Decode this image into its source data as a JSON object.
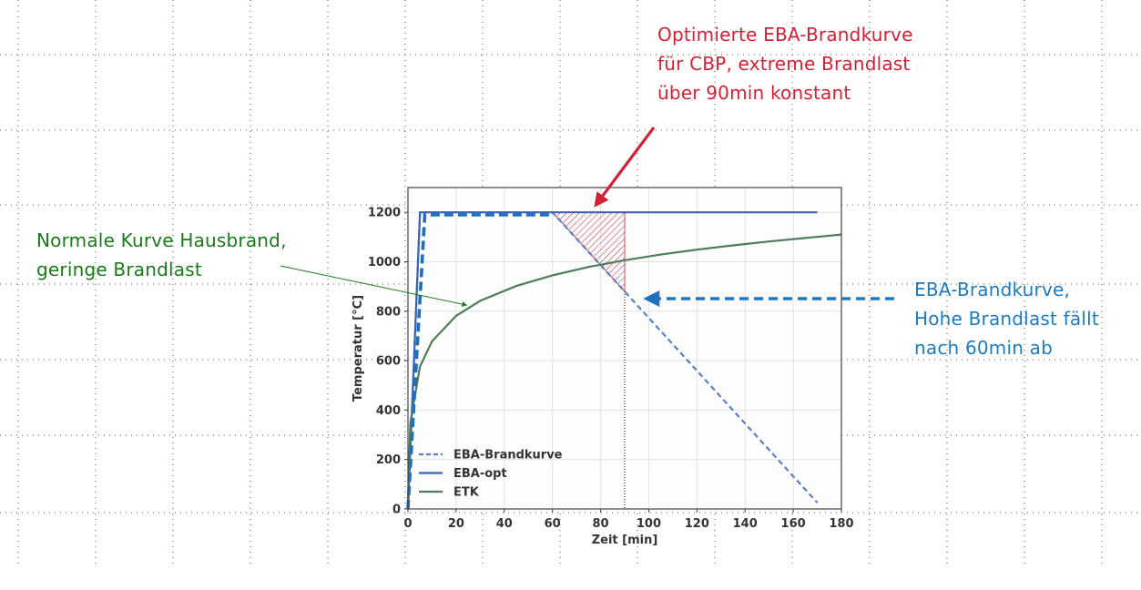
{
  "chart_data": {
    "type": "line",
    "xlabel": "Zeit [min]",
    "ylabel": "Temperatur [°C]",
    "xlim": [
      0,
      180
    ],
    "ylim": [
      0,
      1300
    ],
    "x_ticks": [
      0,
      20,
      40,
      60,
      80,
      100,
      120,
      140,
      160,
      180
    ],
    "y_ticks": [
      0,
      200,
      400,
      600,
      800,
      1000,
      1200
    ],
    "grid": true,
    "legend_position": "bottom-left",
    "series": [
      {
        "name": "EBA-Brandkurve",
        "style": "dashed",
        "color": "#5b7fc4",
        "x": [
          0,
          5,
          60,
          170
        ],
        "y": [
          0,
          1200,
          1200,
          25
        ]
      },
      {
        "name": "EBA-opt",
        "style": "solid",
        "color": "#3a62b8",
        "x": [
          0,
          5,
          170
        ],
        "y": [
          0,
          1200,
          1200
        ]
      },
      {
        "name": "ETK",
        "style": "solid",
        "color": "#4f7d57",
        "x": [
          0,
          1,
          5,
          10,
          20,
          30,
          45,
          60,
          75,
          90,
          105,
          120,
          135,
          150,
          165,
          180
        ],
        "y": [
          20,
          349,
          576,
          678,
          781,
          842,
          902,
          945,
          979,
          1006,
          1029,
          1049,
          1066,
          1082,
          1096,
          1110
        ]
      }
    ],
    "overlay_dashed": {
      "x": [
        0,
        7,
        60
      ],
      "y": [
        0,
        1190,
        1190
      ],
      "color": "#1f6fbd"
    },
    "hatched_region": {
      "x": [
        60,
        90,
        90
      ],
      "y": [
        1200,
        1200,
        880
      ],
      "color": "#d42034"
    },
    "vertical_line_x": 90,
    "annotations": {
      "red": {
        "lines": [
          "Optimierte EBA-Brandkurve",
          "für CBP, extreme Brandlast",
          "über 90min konstant"
        ],
        "color": "#d42034",
        "target_x": 78,
        "target_y": 1200
      },
      "green": {
        "lines": [
          "Normale Kurve Hausbrand,",
          "geringe Brandlast"
        ],
        "color": "#1a7a1a",
        "target_x": 25,
        "target_y": 810
      },
      "blue": {
        "lines": [
          "EBA-Brandkurve,",
          "Hohe Brandlast fällt",
          "nach 60min ab"
        ],
        "color": "#1f7bbf",
        "target_x": 96,
        "target_y": 850
      }
    }
  }
}
